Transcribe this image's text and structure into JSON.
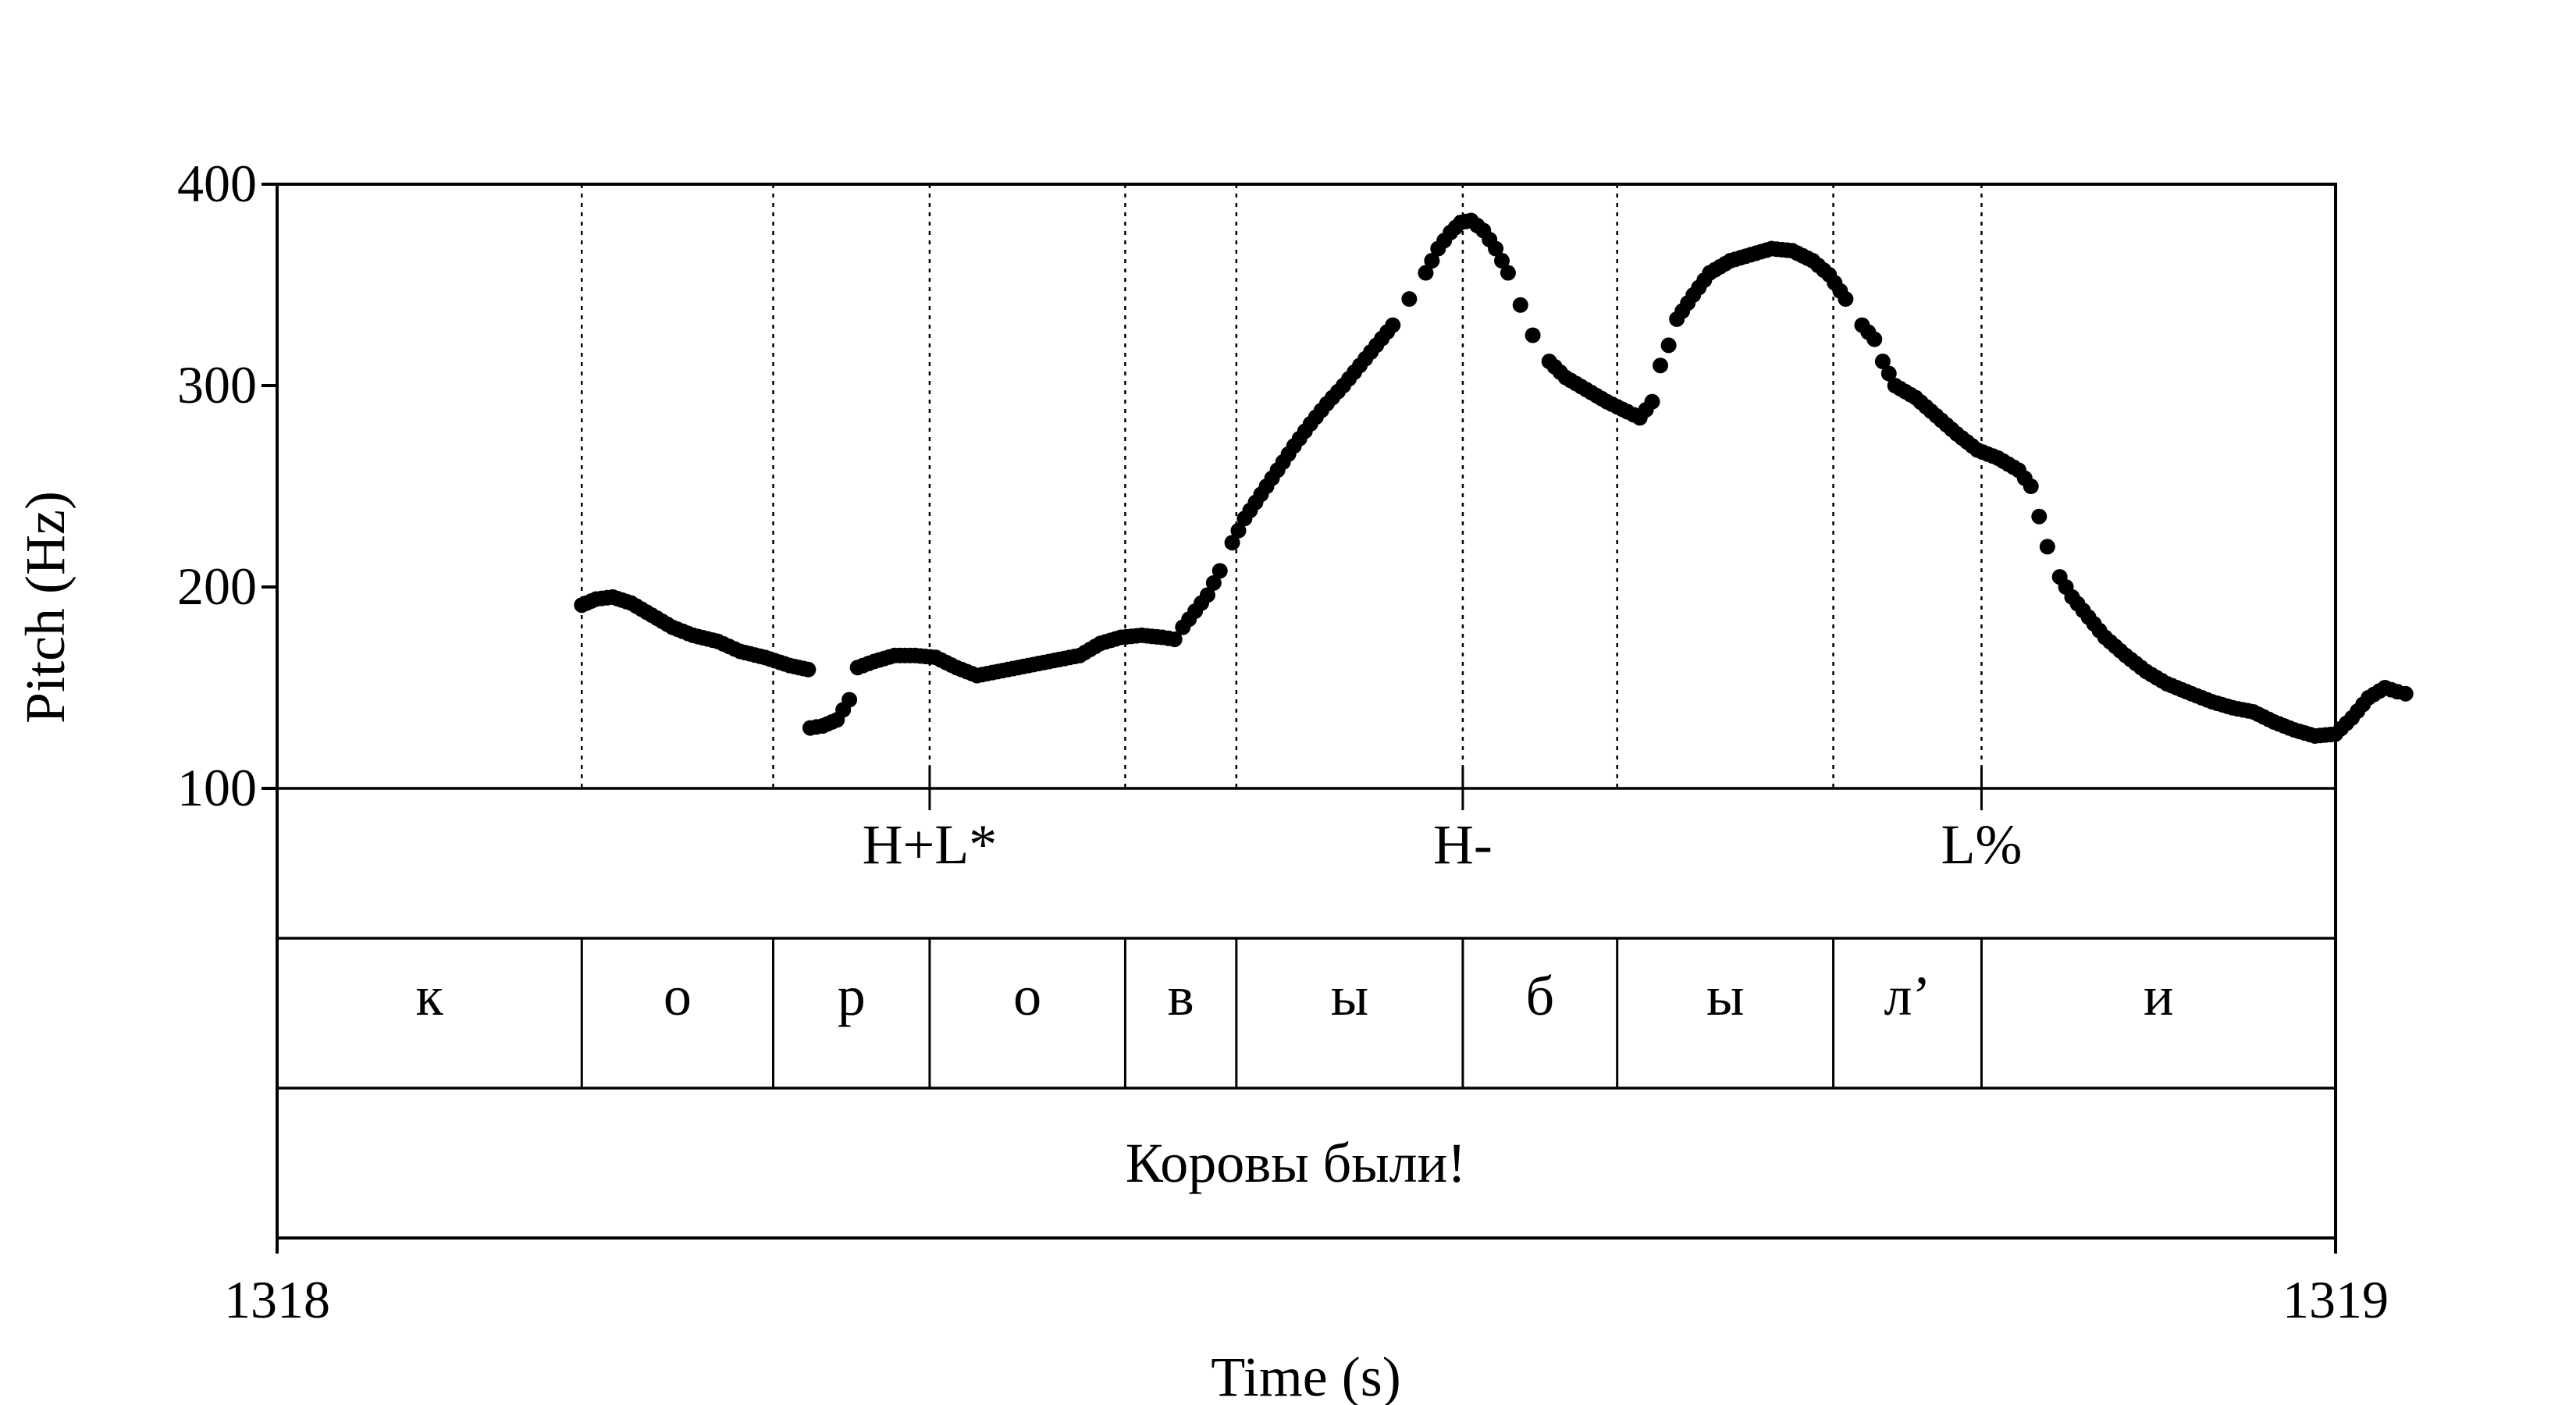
{
  "chart_data": {
    "type": "scatter",
    "title": "",
    "xlabel": "Time (s)",
    "ylabel": "Pitch (Hz)",
    "xlim": [
      1318,
      1319
    ],
    "ylim": [
      100,
      400
    ],
    "xticks": [
      {
        "v": 1318,
        "label": "1318"
      },
      {
        "v": 1319,
        "label": "1319"
      }
    ],
    "yticks": [
      {
        "v": 100,
        "label": "100"
      },
      {
        "v": 200,
        "label": "200"
      },
      {
        "v": 300,
        "label": "300"
      },
      {
        "v": 400,
        "label": "400"
      }
    ],
    "grid": false,
    "marker_color": "#000000",
    "boundaries": [
      1318.148,
      1318.241,
      1318.317,
      1318.412,
      1318.466,
      1318.576,
      1318.651,
      1318.756,
      1318.828
    ],
    "tones": [
      {
        "t": 1318.317,
        "label": "H+L*"
      },
      {
        "t": 1318.576,
        "label": "H-"
      },
      {
        "t": 1318.828,
        "label": "L%"
      }
    ],
    "segments": [
      {
        "start": 1318.0,
        "end": 1318.148,
        "label": "к"
      },
      {
        "start": 1318.148,
        "end": 1318.241,
        "label": "о"
      },
      {
        "start": 1318.241,
        "end": 1318.317,
        "label": "р"
      },
      {
        "start": 1318.317,
        "end": 1318.412,
        "label": "о"
      },
      {
        "start": 1318.412,
        "end": 1318.466,
        "label": "в"
      },
      {
        "start": 1318.466,
        "end": 1318.576,
        "label": "ы"
      },
      {
        "start": 1318.576,
        "end": 1318.651,
        "label": "б"
      },
      {
        "start": 1318.651,
        "end": 1318.756,
        "label": "ы"
      },
      {
        "start": 1318.756,
        "end": 1318.828,
        "label": "л’"
      },
      {
        "start": 1318.828,
        "end": 1319.0,
        "label": "и"
      }
    ],
    "utterance": "Коровы были!",
    "pitch_contour": [
      [
        1318.148,
        191
      ],
      [
        1318.155,
        194
      ],
      [
        1318.163,
        195
      ],
      [
        1318.172,
        192
      ],
      [
        1318.182,
        186
      ],
      [
        1318.192,
        180
      ],
      [
        1318.202,
        176
      ],
      [
        1318.214,
        173
      ],
      [
        1318.225,
        168
      ],
      [
        1318.237,
        165
      ],
      [
        1318.249,
        161
      ],
      [
        1318.258,
        159
      ],
      [
        1318.259,
        130
      ],
      [
        1318.265,
        131
      ],
      [
        1318.272,
        134
      ],
      [
        1318.278,
        144
      ],
      [
        1318.282,
        160
      ],
      [
        1318.29,
        163
      ],
      [
        1318.3,
        166
      ],
      [
        1318.31,
        166
      ],
      [
        1318.32,
        165
      ],
      [
        1318.33,
        160
      ],
      [
        1318.34,
        156
      ],
      [
        1318.35,
        158
      ],
      [
        1318.36,
        160
      ],
      [
        1318.37,
        162
      ],
      [
        1318.38,
        164
      ],
      [
        1318.39,
        166
      ],
      [
        1318.4,
        172
      ],
      [
        1318.41,
        175
      ],
      [
        1318.42,
        176
      ],
      [
        1318.43,
        175
      ],
      [
        1318.436,
        174
      ],
      [
        1318.44,
        180
      ],
      [
        1318.446,
        188
      ],
      [
        1318.452,
        196
      ],
      [
        1318.458,
        208
      ],
      [
        1318.464,
        222
      ],
      [
        1318.47,
        234
      ],
      [
        1318.478,
        246
      ],
      [
        1318.486,
        258
      ],
      [
        1318.494,
        270
      ],
      [
        1318.502,
        281
      ],
      [
        1318.51,
        291
      ],
      [
        1318.518,
        300
      ],
      [
        1318.526,
        310
      ],
      [
        1318.534,
        320
      ],
      [
        1318.542,
        330
      ],
      [
        1318.55,
        343
      ],
      [
        1318.558,
        356
      ],
      [
        1318.564,
        368
      ],
      [
        1318.57,
        376
      ],
      [
        1318.575,
        381
      ],
      [
        1318.58,
        382
      ],
      [
        1318.586,
        377
      ],
      [
        1318.592,
        368
      ],
      [
        1318.598,
        356
      ],
      [
        1318.604,
        340
      ],
      [
        1318.61,
        325
      ],
      [
        1318.618,
        312
      ],
      [
        1318.626,
        304
      ],
      [
        1318.636,
        298
      ],
      [
        1318.646,
        292
      ],
      [
        1318.656,
        287
      ],
      [
        1318.662,
        284
      ],
      [
        1318.668,
        292
      ],
      [
        1318.672,
        310
      ],
      [
        1318.676,
        320
      ],
      [
        1318.68,
        333
      ],
      [
        1318.688,
        345
      ],
      [
        1318.696,
        356
      ],
      [
        1318.706,
        362
      ],
      [
        1318.716,
        365
      ],
      [
        1318.726,
        368
      ],
      [
        1318.736,
        367
      ],
      [
        1318.746,
        362
      ],
      [
        1318.754,
        355
      ],
      [
        1318.762,
        343
      ],
      [
        1318.77,
        330
      ],
      [
        1318.776,
        323
      ],
      [
        1318.78,
        312
      ],
      [
        1318.786,
        300
      ],
      [
        1318.796,
        294
      ],
      [
        1318.806,
        285
      ],
      [
        1318.816,
        276
      ],
      [
        1318.826,
        268
      ],
      [
        1318.836,
        264
      ],
      [
        1318.846,
        258
      ],
      [
        1318.852,
        250
      ],
      [
        1318.856,
        235
      ],
      [
        1318.86,
        220
      ],
      [
        1318.866,
        205
      ],
      [
        1318.872,
        195
      ],
      [
        1318.88,
        185
      ],
      [
        1318.888,
        175
      ],
      [
        1318.898,
        166
      ],
      [
        1318.908,
        158
      ],
      [
        1318.918,
        152
      ],
      [
        1318.93,
        147
      ],
      [
        1318.94,
        143
      ],
      [
        1318.95,
        140
      ],
      [
        1318.96,
        138
      ],
      [
        1318.97,
        133
      ],
      [
        1318.98,
        129
      ],
      [
        1318.99,
        126
      ],
      [
        1319.0,
        127
      ],
      [
        1319.008,
        135
      ],
      [
        1319.016,
        145
      ],
      [
        1319.024,
        150
      ],
      [
        1319.03,
        148
      ],
      [
        1319.034,
        147
      ]
    ]
  }
}
